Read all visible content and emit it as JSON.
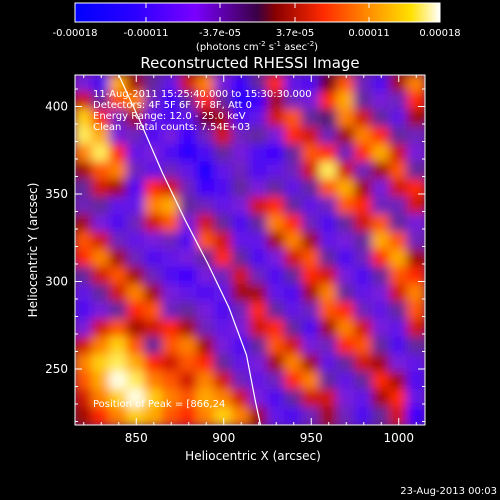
{
  "chart_data": {
    "type": "heatmap",
    "title": "Reconstructed RHESSI Image",
    "xlabel": "Heliocentric X (arcsec)",
    "ylabel": "Heliocentric Y (arcsec)",
    "xlim": [
      815,
      1015
    ],
    "ylim": [
      218,
      418
    ],
    "xticks": [
      850,
      900,
      950,
      1000
    ],
    "yticks": [
      250,
      300,
      350,
      400
    ],
    "colorbar": {
      "ticks": [
        "-0.00018",
        "-0.00011",
        "-3.7e-05",
        "3.7e-05",
        "0.00011",
        "0.00018"
      ],
      "tick_values": [
        -0.00018,
        -0.00011,
        -3.7e-05,
        3.7e-05,
        0.00011,
        0.00018
      ],
      "range": [
        -0.00018,
        0.00018
      ],
      "unit_line1": "(photons cm",
      "unit_exp1": "-2",
      "unit_mid": " s",
      "unit_exp2": "-1",
      "unit_mid2": " asec",
      "unit_exp3": "-2",
      "unit_end": ")"
    },
    "annotations": [
      "11-Aug-2011 15:25:40.000 to 15:30:30.000",
      "Detectors: 4F 5F 6F 7F 8F, Att 0",
      "Energy Range: 12.0 - 25.0 keV",
      "Clean    Total counts: 7.54E+03"
    ],
    "peak_label": "Position of Peak = [866,24",
    "limb_curve": [
      [
        840,
        418
      ],
      [
        852,
        392
      ],
      [
        865,
        362
      ],
      [
        878,
        335
      ],
      [
        891,
        310
      ],
      [
        903,
        285
      ],
      [
        913,
        258
      ],
      [
        918,
        232
      ],
      [
        921,
        218
      ]
    ],
    "intensity_grid": [
      [
        -0.4,
        -0.6,
        0.7,
        0.2,
        -0.2,
        -0.5,
        0.3,
        0.6,
        -0.4,
        -0.7,
        -0.2,
        0.4,
        -0.5,
        -0.6,
        0.1,
        0.5,
        -0.3,
        -0.6,
        0.2,
        0.6
      ],
      [
        0.3,
        -0.2,
        0.5,
        0.6,
        -0.3,
        -0.7,
        -0.2,
        0.4,
        -0.2,
        -0.8,
        -0.7,
        0.2,
        -0.3,
        -0.4,
        0.4,
        0.7,
        -0.2,
        -0.4,
        -0.3,
        0.4
      ],
      [
        0.8,
        0.4,
        -0.3,
        0.2,
        -0.5,
        -0.6,
        -0.5,
        0.1,
        0.2,
        -0.6,
        -0.5,
        0.3,
        0.5,
        -0.2,
        -0.1,
        0.6,
        0.3,
        -0.2,
        -0.5,
        0.2
      ],
      [
        0.9,
        0.7,
        -0.4,
        -0.3,
        -0.6,
        -0.4,
        -0.7,
        -0.3,
        0.3,
        -0.3,
        -0.2,
        -0.4,
        0.4,
        0.3,
        -0.3,
        0.2,
        0.6,
        0.4,
        -0.2,
        -0.3
      ],
      [
        0.6,
        0.9,
        0.4,
        -0.5,
        -0.4,
        -0.6,
        -0.8,
        -0.6,
        -0.2,
        -0.4,
        -0.6,
        -0.7,
        -0.2,
        0.5,
        0.4,
        -0.3,
        0.4,
        0.7,
        0.3,
        -0.4
      ],
      [
        0.2,
        0.5,
        0.6,
        -0.3,
        -0.5,
        -0.3,
        -0.5,
        -0.9,
        -0.5,
        -0.3,
        -0.6,
        -0.5,
        -0.3,
        0.3,
        0.9,
        0.3,
        -0.3,
        0.2,
        0.5,
        -0.2
      ],
      [
        -0.2,
        0.3,
        0.2,
        -0.6,
        0.4,
        0.3,
        -0.3,
        -0.7,
        -0.6,
        -0.2,
        -0.4,
        -0.2,
        -0.5,
        -0.2,
        0.5,
        0.7,
        0.2,
        -0.4,
        0.3,
        0.4
      ],
      [
        -0.3,
        -0.2,
        -0.5,
        -0.5,
        0.6,
        0.7,
        -0.2,
        -0.3,
        -0.5,
        -0.4,
        0.3,
        0.4,
        -0.2,
        -0.5,
        -0.3,
        0.5,
        0.4,
        -0.3,
        -0.3,
        0.3
      ],
      [
        0.2,
        -0.4,
        -0.6,
        -0.3,
        0.3,
        0.5,
        -0.4,
        0.3,
        -0.2,
        -0.6,
        -0.2,
        0.6,
        0.4,
        -0.3,
        -0.6,
        -0.2,
        0.3,
        0.5,
        -0.2,
        -0.4
      ],
      [
        0.5,
        0.3,
        -0.3,
        -0.5,
        -0.4,
        -0.3,
        -0.6,
        0.5,
        0.3,
        -0.5,
        -0.5,
        0.2,
        0.6,
        0.2,
        -0.5,
        -0.4,
        -0.2,
        0.7,
        0.5,
        -0.3
      ],
      [
        0.4,
        0.6,
        0.2,
        -0.3,
        -0.6,
        -0.5,
        -0.4,
        -0.2,
        0.4,
        -0.2,
        -0.6,
        -0.4,
        0.3,
        0.5,
        -0.2,
        -0.6,
        -0.3,
        0.4,
        0.7,
        0.2
      ],
      [
        -0.2,
        0.3,
        0.5,
        0.2,
        -0.3,
        -0.6,
        -0.7,
        -0.4,
        -0.3,
        0.3,
        -0.3,
        -0.6,
        -0.2,
        0.4,
        0.3,
        -0.4,
        -0.6,
        -0.2,
        0.5,
        0.4
      ],
      [
        -0.5,
        -0.2,
        0.3,
        0.6,
        0.2,
        -0.4,
        -0.5,
        -0.6,
        -0.5,
        0.2,
        0.2,
        -0.5,
        -0.6,
        0.2,
        0.6,
        -0.2,
        -0.5,
        -0.4,
        0.3,
        0.6
      ],
      [
        -0.6,
        -0.4,
        -0.2,
        0.4,
        0.5,
        -0.3,
        -0.2,
        -0.4,
        -0.6,
        -0.3,
        0.4,
        -0.2,
        -0.5,
        -0.3,
        0.5,
        0.4,
        -0.3,
        -0.5,
        -0.2,
        0.5
      ],
      [
        -0.4,
        0.3,
        0.5,
        0.2,
        0.3,
        0.4,
        0.2,
        -0.3,
        -0.5,
        -0.4,
        0.3,
        0.4,
        -0.2,
        -0.6,
        0.2,
        0.6,
        0.3,
        -0.4,
        -0.5,
        0.3
      ],
      [
        0.3,
        0.6,
        0.8,
        0.5,
        -0.2,
        0.5,
        0.6,
        0.2,
        -0.4,
        -0.6,
        -0.2,
        0.5,
        0.3,
        -0.4,
        -0.3,
        0.4,
        0.5,
        -0.2,
        -0.6,
        -0.2
      ],
      [
        0.6,
        0.8,
        0.9,
        0.7,
        0.4,
        0.3,
        0.5,
        0.4,
        -0.2,
        -0.5,
        -0.4,
        0.2,
        0.6,
        0.2,
        -0.5,
        -0.2,
        0.3,
        0.2,
        -0.4,
        -0.5
      ],
      [
        0.5,
        0.7,
        1.0,
        0.9,
        0.6,
        0.5,
        0.3,
        0.6,
        0.3,
        -0.3,
        -0.5,
        -0.3,
        0.4,
        0.6,
        -0.2,
        -0.5,
        -0.2,
        0.4,
        0.2,
        -0.6
      ],
      [
        0.3,
        0.6,
        0.8,
        1.0,
        0.8,
        0.6,
        0.5,
        0.7,
        0.6,
        0.3,
        -0.4,
        -0.6,
        -0.2,
        0.3,
        0.3,
        -0.4,
        -0.5,
        0.2,
        0.4,
        -0.5
      ],
      [
        0.2,
        0.4,
        0.6,
        0.8,
        0.7,
        0.5,
        0.4,
        0.6,
        0.8,
        0.6,
        0.2,
        -0.5,
        -0.6,
        -0.3,
        0.2,
        -0.3,
        -0.6,
        -0.2,
        0.3,
        -0.7
      ]
    ]
  },
  "footer": {
    "timestamp": "23-Aug-2013 00:03"
  }
}
